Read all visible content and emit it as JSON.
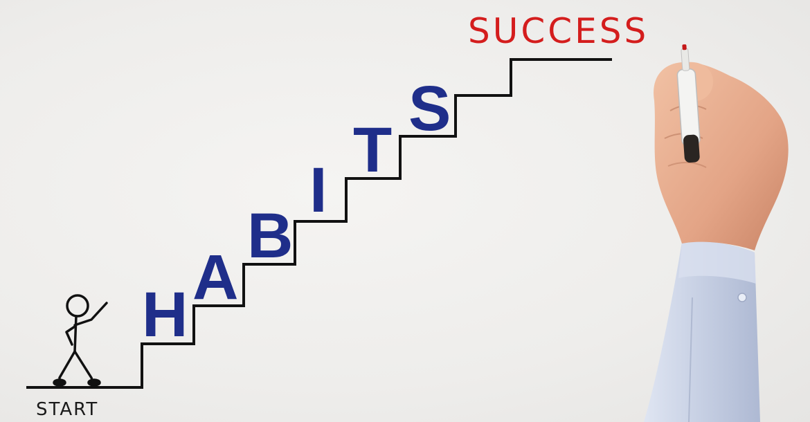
{
  "image": {
    "start_label": "START",
    "goal_label": "SUCCESS",
    "staircase_word": "HABITS",
    "letters": [
      "H",
      "A",
      "B",
      "I",
      "T",
      "S"
    ],
    "colors": {
      "background": "#efeeec",
      "letters": "#1f2e8a",
      "goal_text": "#d41d1d",
      "stairs": "#111111",
      "skin": "#e7a98a",
      "sleeve": "#c9d2e6"
    },
    "icons": [
      "stick-figure-icon",
      "hand-with-marker-icon"
    ]
  }
}
